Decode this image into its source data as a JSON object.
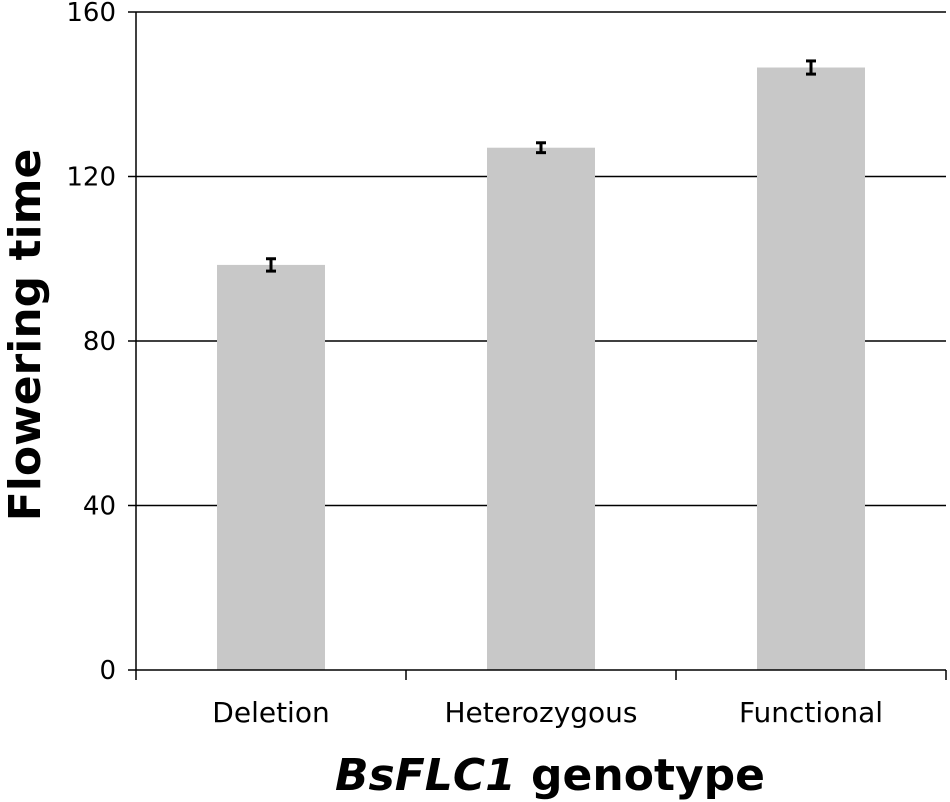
{
  "chart_data": {
    "type": "bar",
    "categories": [
      "Deletion",
      "Heterozygous",
      "Functional"
    ],
    "values": [
      98.5,
      127,
      146.5
    ],
    "error": [
      1.5,
      1.2,
      1.6
    ],
    "ylabel": "Flowering time",
    "xlabel_italic": "BsFLC1",
    "xlabel_rest": " genotype",
    "ylim": [
      0,
      160
    ],
    "yticks": [
      0,
      40,
      80,
      120,
      160
    ],
    "grid": true,
    "colors": {
      "bar": "#c8c8c8",
      "grid": "#000000",
      "axis": "#000000",
      "error": "#000000"
    }
  }
}
